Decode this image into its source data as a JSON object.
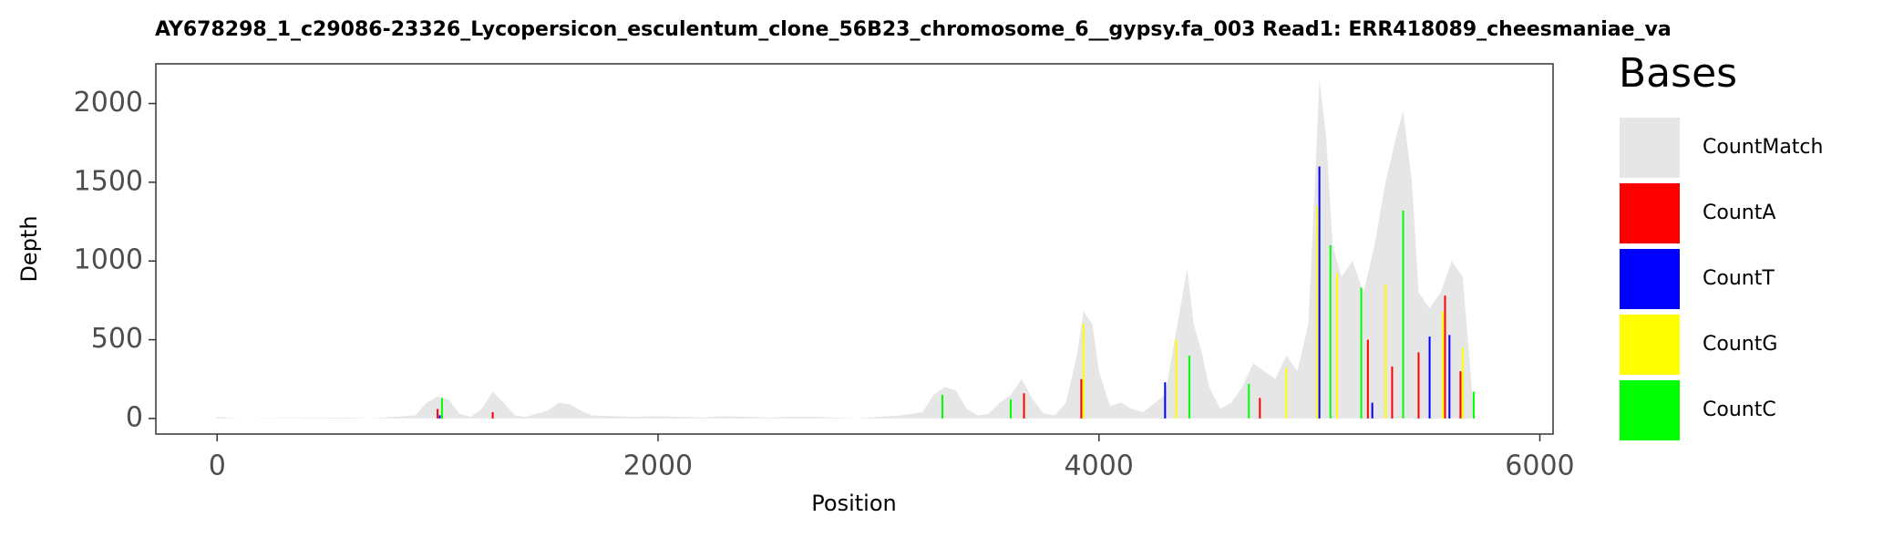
{
  "chart_data": {
    "type": "bar",
    "title": "AY678298_1_c29086-23326_Lycopersicon_esculentum_clone_56B23_chromosome_6__gypsy.fa_003   Read1: ERR418089_cheesmaniae_va",
    "x_label": "Position",
    "y_label": "Depth",
    "legend_title": "Bases",
    "legend": "right",
    "xlim": [
      -278,
      6060
    ],
    "ylim": [
      -99,
      2252
    ],
    "xticks": [
      0,
      2000,
      4000,
      6000
    ],
    "yticks": [
      0,
      500,
      1000,
      1500,
      2000
    ],
    "series": [
      {
        "name": "CountMatch",
        "color": "#e6e6e6",
        "type": "area",
        "x": [
          0,
          100,
          600,
          700,
          900,
          950,
          1000,
          1050,
          1100,
          1150,
          1200,
          1250,
          1300,
          1350,
          1400,
          1500,
          1550,
          1600,
          1650,
          1700,
          1800,
          1900,
          2000,
          2100,
          2200,
          2300,
          2400,
          2500,
          2600,
          2700,
          2800,
          2900,
          3000,
          3100,
          3200,
          3250,
          3300,
          3350,
          3400,
          3450,
          3500,
          3550,
          3600,
          3650,
          3700,
          3750,
          3800,
          3850,
          3900,
          3930,
          3970,
          4000,
          4050,
          4100,
          4150,
          4200,
          4300,
          4350,
          4400,
          4430,
          4470,
          4500,
          4550,
          4600,
          4650,
          4700,
          4750,
          4800,
          4850,
          4900,
          4950,
          4980,
          5000,
          5030,
          5060,
          5100,
          5150,
          5200,
          5250,
          5300,
          5350,
          5380,
          5420,
          5450,
          5500,
          5550,
          5600,
          5650,
          5700
        ],
        "values": [
          10,
          0,
          5,
          0,
          20,
          100,
          140,
          120,
          30,
          10,
          60,
          170,
          100,
          20,
          10,
          50,
          100,
          90,
          50,
          20,
          15,
          10,
          15,
          10,
          5,
          15,
          10,
          5,
          10,
          10,
          5,
          0,
          10,
          20,
          40,
          150,
          200,
          180,
          60,
          20,
          30,
          100,
          150,
          250,
          120,
          30,
          20,
          100,
          400,
          680,
          600,
          300,
          80,
          100,
          60,
          40,
          150,
          550,
          950,
          600,
          400,
          200,
          60,
          100,
          200,
          350,
          300,
          250,
          400,
          300,
          600,
          1500,
          2150,
          1800,
          1100,
          900,
          1000,
          800,
          1100,
          1500,
          1800,
          1950,
          1500,
          800,
          700,
          800,
          1000,
          900,
          50
        ]
      },
      {
        "name": "CountA",
        "color": "#ff0000",
        "type": "bar",
        "x": [
          1000,
          1250,
          3660,
          3920,
          4730,
          5220,
          5330,
          5450,
          5570,
          5640
        ],
        "values": [
          60,
          40,
          160,
          250,
          130,
          500,
          330,
          420,
          780,
          300
        ]
      },
      {
        "name": "CountT",
        "color": "#0000ff",
        "type": "bar",
        "x": [
          1010,
          4300,
          5000,
          5240,
          5500,
          5590
        ],
        "values": [
          20,
          230,
          1600,
          100,
          520,
          530
        ]
      },
      {
        "name": "CountG",
        "color": "#ffff00",
        "type": "bar",
        "x": [
          3930,
          4350,
          4850,
          4990,
          5080,
          5300,
          5560,
          5650
        ],
        "values": [
          600,
          500,
          320,
          1350,
          920,
          850,
          680,
          450
        ]
      },
      {
        "name": "CountC",
        "color": "#00ff00",
        "type": "bar",
        "x": [
          1020,
          3290,
          3600,
          4410,
          4680,
          5050,
          5190,
          5380,
          5700
        ],
        "values": [
          130,
          150,
          120,
          400,
          220,
          1100,
          830,
          1320,
          170
        ]
      }
    ]
  }
}
